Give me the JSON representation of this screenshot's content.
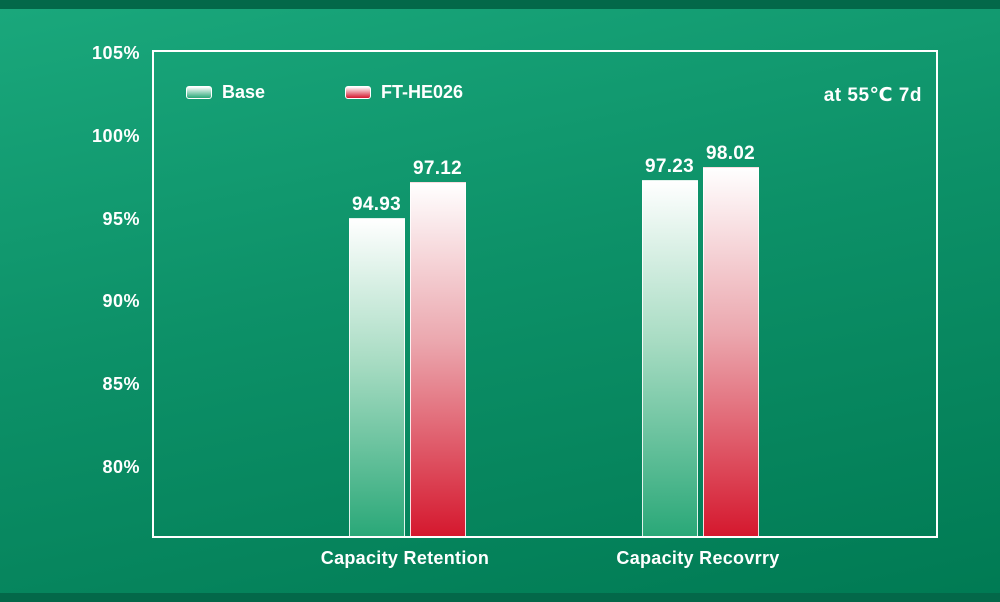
{
  "chart_data": {
    "type": "bar",
    "title": "",
    "categories": [
      "Capacity Retention",
      "Capacity Recovrry"
    ],
    "series": [
      {
        "name": "Base",
        "values": [
          94.93,
          97.23
        ],
        "gradient": [
          "#ffffff",
          "#a8dcc3",
          "#2aa878"
        ]
      },
      {
        "name": "FT-HE026",
        "values": [
          97.12,
          98.02
        ],
        "gradient": [
          "#ffffff",
          "#eba7ae",
          "#d5182e"
        ]
      }
    ],
    "yticks": [
      105,
      100,
      95,
      90,
      85,
      80
    ],
    "ytick_suffix": "%",
    "ylim": [
      75.7,
      105.2
    ],
    "annotation": "at 55℃ 7d",
    "legend_position": "top-left",
    "grid": false,
    "xlabel": "",
    "ylabel": ""
  },
  "colors": {
    "background_top": "#1aa87c",
    "background_bottom": "#007a53",
    "edge_band": "#036849",
    "frame": "#ffffff",
    "text": "#ffffff"
  }
}
